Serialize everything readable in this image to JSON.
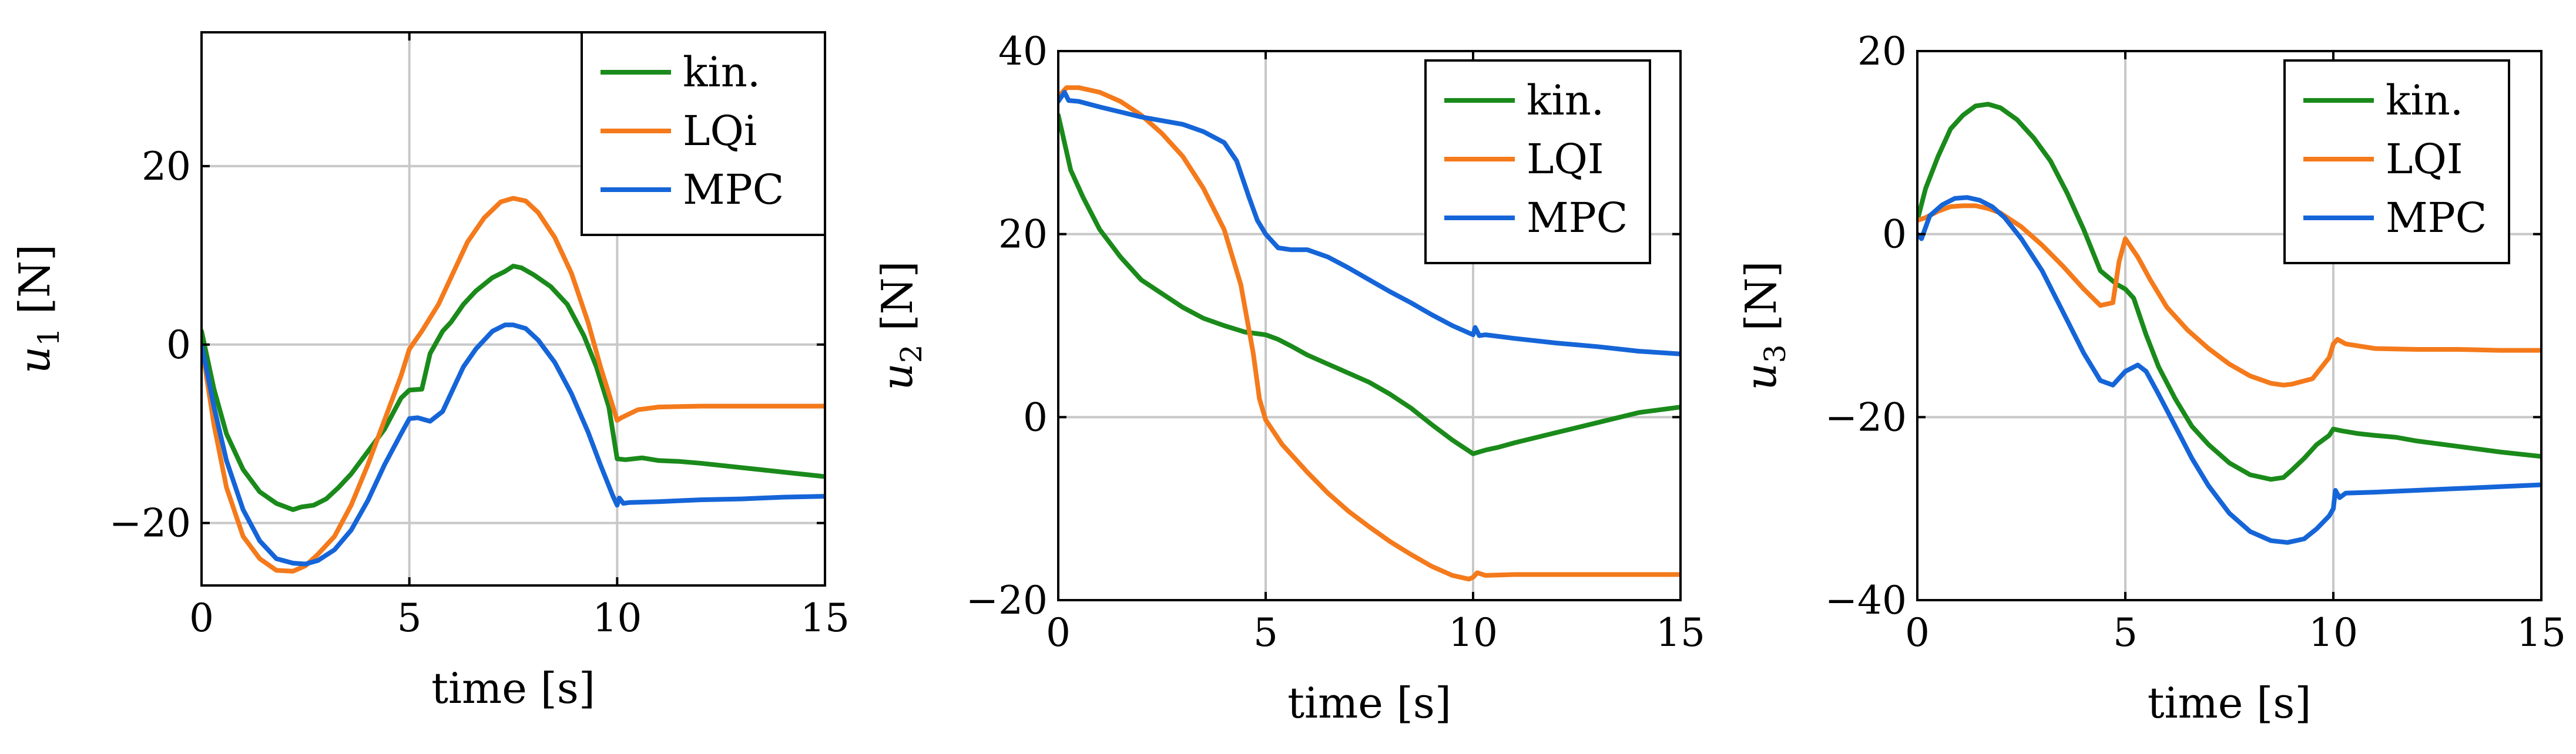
{
  "colors": {
    "kin": "#1a8a1a",
    "lqi": "#f47a1b",
    "mpc": "#1565d8"
  },
  "chart_data": [
    {
      "type": "line",
      "title": "",
      "xlabel": "time [s]",
      "ylabel": "u1 [N]",
      "ylabel_base": "u",
      "ylabel_sub": "1",
      "ylabel_unit": " [N]",
      "xlim": [
        0,
        15
      ],
      "ylim": [
        -27,
        35
      ],
      "xticks": [
        0,
        5,
        10,
        15
      ],
      "yticks": [
        -20,
        0,
        20
      ],
      "xtick_labels": [
        "0",
        "5",
        "10",
        "15"
      ],
      "ytick_labels": [
        "−20",
        "0",
        "20"
      ],
      "grid": true,
      "legend_position": "top-right",
      "series": [
        {
          "name": "kin.",
          "color_key": "kin",
          "x": [
            0,
            0.3,
            0.6,
            1.0,
            1.4,
            1.8,
            2.2,
            2.4,
            2.7,
            3.0,
            3.3,
            3.6,
            4.0,
            4.4,
            4.8,
            5.0,
            5.3,
            5.5,
            5.8,
            6.0,
            6.3,
            6.6,
            7.0,
            7.3,
            7.5,
            7.7,
            8.0,
            8.4,
            8.8,
            9.2,
            9.5,
            9.8,
            10.0,
            10.2,
            10.6,
            11.0,
            11.5,
            12.0,
            13.0,
            14.0,
            15.0
          ],
          "y": [
            1.5,
            -5,
            -10,
            -14,
            -16.5,
            -17.8,
            -18.5,
            -18.2,
            -18,
            -17.3,
            -16,
            -14.5,
            -12,
            -9.5,
            -6,
            -5.1,
            -5,
            -1,
            1.5,
            2.5,
            4.5,
            6,
            7.5,
            8.2,
            8.8,
            8.6,
            7.8,
            6.5,
            4.5,
            1,
            -2.5,
            -7,
            -12.8,
            -12.9,
            -12.7,
            -13,
            -13.1,
            -13.3,
            -13.8,
            -14.3,
            -14.8
          ]
        },
        {
          "name": "LQi",
          "color_key": "lqi",
          "x": [
            0,
            0.3,
            0.6,
            1.0,
            1.4,
            1.8,
            2.2,
            2.5,
            2.8,
            3.2,
            3.6,
            4.0,
            4.4,
            4.8,
            5.0,
            5.3,
            5.7,
            6.0,
            6.4,
            6.8,
            7.2,
            7.5,
            7.8,
            8.1,
            8.5,
            8.9,
            9.3,
            9.6,
            9.9,
            10.0,
            10.1,
            10.5,
            11.0,
            12.0,
            13.0,
            14.0,
            15.0
          ],
          "y": [
            0,
            -9,
            -16,
            -21.5,
            -24,
            -25.3,
            -25.4,
            -24.8,
            -23.5,
            -21.5,
            -18,
            -13.5,
            -8.5,
            -3.5,
            -0.5,
            1.5,
            4.5,
            7.5,
            11.5,
            14.2,
            16,
            16.4,
            16.1,
            14.8,
            12,
            8,
            2.5,
            -2.5,
            -7,
            -8.5,
            -8.2,
            -7.3,
            -7,
            -6.9,
            -6.9,
            -6.9,
            -6.9
          ]
        },
        {
          "name": "MPC",
          "color_key": "mpc",
          "x": [
            0,
            0.3,
            0.6,
            1.0,
            1.4,
            1.8,
            2.2,
            2.5,
            2.8,
            3.2,
            3.6,
            4.0,
            4.4,
            4.8,
            5.0,
            5.2,
            5.5,
            5.8,
            6.0,
            6.3,
            6.6,
            7.0,
            7.3,
            7.5,
            7.8,
            8.1,
            8.5,
            8.9,
            9.3,
            9.6,
            9.9,
            10.0,
            10.05,
            10.15,
            10.3,
            11.0,
            12.0,
            13.0,
            14.0,
            15.0
          ],
          "y": [
            0,
            -7,
            -13,
            -18.5,
            -22,
            -24,
            -24.5,
            -24.6,
            -24.2,
            -23,
            -20.8,
            -17.5,
            -13.5,
            -10,
            -8.3,
            -8.2,
            -8.6,
            -7.5,
            -5.5,
            -2.5,
            -0.5,
            1.5,
            2.2,
            2.2,
            1.8,
            0.5,
            -2,
            -5.5,
            -9.8,
            -13.5,
            -17,
            -18,
            -17.2,
            -17.8,
            -17.7,
            -17.6,
            -17.4,
            -17.3,
            -17.1,
            -17
          ]
        }
      ]
    },
    {
      "type": "line",
      "title": "",
      "xlabel": "time [s]",
      "ylabel": "u2 [N]",
      "ylabel_base": "u",
      "ylabel_sub": "2",
      "ylabel_unit": " [N]",
      "xlim": [
        0,
        15
      ],
      "ylim": [
        -20,
        40
      ],
      "xticks": [
        0,
        5,
        10,
        15
      ],
      "yticks": [
        -20,
        0,
        20,
        40
      ],
      "xtick_labels": [
        "0",
        "5",
        "10",
        "15"
      ],
      "ytick_labels": [
        "−20",
        "0",
        "20",
        "40"
      ],
      "grid": true,
      "legend_position": "top-right",
      "series": [
        {
          "name": "kin.",
          "color_key": "kin",
          "x": [
            0,
            0.3,
            0.6,
            1.0,
            1.5,
            2.0,
            2.5,
            3.0,
            3.5,
            4.0,
            4.5,
            5.0,
            5.3,
            5.6,
            6.0,
            6.5,
            7.0,
            7.5,
            8.0,
            8.5,
            9.0,
            9.5,
            10.0,
            10.3,
            10.6,
            11.0,
            12.0,
            13.0,
            14.0,
            15.0
          ],
          "y": [
            33,
            27,
            24,
            20.5,
            17.5,
            15,
            13.5,
            12,
            10.8,
            10,
            9.3,
            9,
            8.5,
            7.8,
            6.8,
            5.8,
            4.8,
            3.8,
            2.5,
            1,
            -0.8,
            -2.5,
            -4,
            -3.6,
            -3.3,
            -2.8,
            -1.7,
            -0.6,
            0.5,
            1.1
          ]
        },
        {
          "name": "LQI",
          "color_key": "lqi",
          "x": [
            0,
            0.2,
            0.5,
            1.0,
            1.5,
            2.0,
            2.5,
            3.0,
            3.5,
            4.0,
            4.4,
            4.7,
            4.85,
            5.0,
            5.4,
            6.0,
            6.5,
            7.0,
            7.5,
            8.0,
            8.5,
            9.0,
            9.5,
            9.9,
            10.0,
            10.1,
            10.3,
            11.0,
            12.0,
            13.0,
            14.0,
            15.0
          ],
          "y": [
            35,
            36,
            36,
            35.5,
            34.5,
            33,
            31,
            28.5,
            25,
            20.5,
            14.5,
            7,
            2,
            -0.3,
            -3,
            -6,
            -8.3,
            -10.3,
            -12,
            -13.6,
            -15,
            -16.3,
            -17.3,
            -17.7,
            -17.5,
            -17,
            -17.3,
            -17.2,
            -17.2,
            -17.2,
            -17.2,
            -17.2
          ]
        },
        {
          "name": "MPC",
          "color_key": "mpc",
          "x": [
            0,
            0.15,
            0.25,
            0.5,
            1.0,
            2.0,
            3.0,
            3.5,
            4.0,
            4.3,
            4.6,
            4.8,
            5.0,
            5.3,
            5.6,
            6.0,
            6.5,
            7.0,
            7.5,
            8.0,
            8.5,
            9.0,
            9.5,
            9.9,
            10.0,
            10.05,
            10.15,
            10.3,
            11.0,
            12.0,
            13.0,
            14.0,
            15.0
          ],
          "y": [
            34.5,
            35.5,
            34.6,
            34.5,
            33.9,
            32.8,
            32,
            31.2,
            30,
            28,
            24,
            21.5,
            20,
            18.5,
            18.3,
            18.3,
            17.5,
            16.3,
            15,
            13.7,
            12.5,
            11.2,
            10,
            9.2,
            9,
            9.8,
            8.9,
            9,
            8.6,
            8.1,
            7.7,
            7.2,
            6.9
          ]
        }
      ]
    },
    {
      "type": "line",
      "title": "",
      "xlabel": "time [s]",
      "ylabel": "u3 [N]",
      "ylabel_base": "u",
      "ylabel_sub": "3",
      "ylabel_unit": " [N]",
      "xlim": [
        0,
        15
      ],
      "ylim": [
        -40,
        20
      ],
      "xticks": [
        0,
        5,
        10,
        15
      ],
      "yticks": [
        -40,
        -20,
        0,
        20
      ],
      "xtick_labels": [
        "0",
        "5",
        "10",
        "15"
      ],
      "ytick_labels": [
        "−40",
        "−20",
        "0",
        "20"
      ],
      "grid": true,
      "legend_position": "top-right",
      "series": [
        {
          "name": "kin.",
          "color_key": "kin",
          "x": [
            0,
            0.2,
            0.5,
            0.8,
            1.1,
            1.4,
            1.7,
            2.0,
            2.4,
            2.8,
            3.2,
            3.6,
            4.0,
            4.4,
            4.8,
            5.0,
            5.2,
            5.5,
            5.8,
            6.2,
            6.6,
            7.0,
            7.5,
            8.0,
            8.5,
            8.8,
            9.0,
            9.3,
            9.6,
            9.9,
            10.0,
            10.2,
            10.6,
            11.0,
            11.5,
            12.0,
            13.0,
            14.0,
            15.0
          ],
          "y": [
            1.5,
            5,
            8.5,
            11.5,
            13,
            14,
            14.2,
            13.8,
            12.5,
            10.5,
            8,
            4.5,
            0.5,
            -4,
            -5.5,
            -6,
            -7,
            -11,
            -14.5,
            -18,
            -21,
            -23,
            -25,
            -26.3,
            -26.8,
            -26.6,
            -25.8,
            -24.5,
            -23,
            -22,
            -21.3,
            -21.5,
            -21.8,
            -22,
            -22.2,
            -22.6,
            -23.2,
            -23.8,
            -24.3
          ]
        },
        {
          "name": "LQI",
          "color_key": "lqi",
          "x": [
            0,
            0.2,
            0.5,
            0.8,
            1.1,
            1.4,
            1.7,
            2.0,
            2.5,
            3.0,
            3.5,
            4.0,
            4.4,
            4.7,
            4.85,
            5.0,
            5.3,
            5.6,
            6.0,
            6.5,
            7.0,
            7.5,
            8.0,
            8.5,
            8.8,
            9.0,
            9.5,
            9.9,
            10.0,
            10.1,
            10.3,
            11.0,
            12.0,
            13.0,
            14.0,
            15.0
          ],
          "y": [
            1.5,
            1.8,
            2.5,
            3,
            3.1,
            3.1,
            2.8,
            2.3,
            0.8,
            -1.2,
            -3.5,
            -6,
            -7.8,
            -7.5,
            -3,
            -0.5,
            -2.5,
            -5,
            -8,
            -10.5,
            -12.5,
            -14.2,
            -15.5,
            -16.3,
            -16.5,
            -16.4,
            -15.8,
            -13.5,
            -12,
            -11.5,
            -12,
            -12.5,
            -12.6,
            -12.6,
            -12.7,
            -12.7
          ]
        },
        {
          "name": "MPC",
          "color_key": "mpc",
          "x": [
            0,
            0.1,
            0.3,
            0.6,
            0.9,
            1.2,
            1.5,
            1.8,
            2.1,
            2.5,
            3.0,
            3.5,
            4.0,
            4.4,
            4.7,
            5.0,
            5.3,
            5.5,
            5.8,
            6.2,
            6.6,
            7.0,
            7.5,
            8.0,
            8.5,
            8.9,
            9.3,
            9.6,
            9.9,
            10.0,
            10.05,
            10.15,
            10.3,
            11.0,
            12.0,
            13.0,
            14.0,
            15.0
          ],
          "y": [
            0,
            -0.5,
            2,
            3.2,
            3.9,
            4,
            3.7,
            3,
            1.8,
            -0.5,
            -4,
            -8.5,
            -13,
            -16,
            -16.5,
            -15,
            -14.3,
            -15,
            -17.5,
            -21,
            -24.5,
            -27.5,
            -30.5,
            -32.5,
            -33.5,
            -33.7,
            -33.3,
            -32.2,
            -30.8,
            -30,
            -28,
            -28.8,
            -28.3,
            -28.2,
            -28,
            -27.8,
            -27.6,
            -27.4
          ]
        }
      ]
    }
  ]
}
